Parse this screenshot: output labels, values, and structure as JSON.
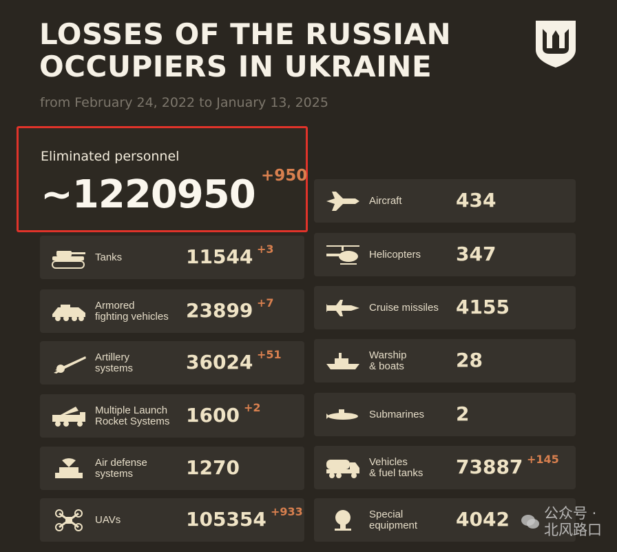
{
  "header": {
    "title_line1": "LOSSES OF THE RUSSIAN",
    "title_line2": "OCCUPIERS IN UKRAINE",
    "subtitle": "from February 24, 2022 to January 13, 2025",
    "emblem": "trident-shield-icon"
  },
  "personnel": {
    "label": "Eliminated personnel",
    "value": "~1220950",
    "increase": "+950"
  },
  "left": [
    {
      "icon": "tank-icon",
      "label": "Tanks",
      "value": "11544",
      "increase": "+3"
    },
    {
      "icon": "armored-vehicle-icon",
      "label": "Armored\nfighting vehicles",
      "value": "23899",
      "increase": "+7"
    },
    {
      "icon": "artillery-icon",
      "label": "Artillery\nsystems",
      "value": "36024",
      "increase": "+51"
    },
    {
      "icon": "rocket-launcher-icon",
      "label": "Multiple Launch\nRocket Systems",
      "value": "1600",
      "increase": "+2"
    },
    {
      "icon": "air-defense-icon",
      "label": "Air defense\nsystems",
      "value": "1270",
      "increase": ""
    },
    {
      "icon": "drone-icon",
      "label": "UAVs",
      "value": "105354",
      "increase": "+933"
    }
  ],
  "right": [
    {
      "icon": "aircraft-icon",
      "label": "Aircraft",
      "value": "434",
      "increase": ""
    },
    {
      "icon": "helicopter-icon",
      "label": "Helicopters",
      "value": "347",
      "increase": ""
    },
    {
      "icon": "cruise-missile-icon",
      "label": "Cruise missiles",
      "value": "4155",
      "increase": ""
    },
    {
      "icon": "warship-icon",
      "label": "Warship\n& boats",
      "value": "28",
      "increase": ""
    },
    {
      "icon": "submarine-icon",
      "label": "Submarines",
      "value": "2",
      "increase": ""
    },
    {
      "icon": "truck-icon",
      "label": "Vehicles\n& fuel tanks",
      "value": "73887",
      "increase": "+145"
    },
    {
      "icon": "special-equipment-icon",
      "label": "Special\nequipment",
      "value": "4042",
      "increase": ""
    }
  ],
  "watermark": {
    "icon": "wechat-icon",
    "text": "公众号 · 北风路口"
  },
  "colors": {
    "background": "#2a2620",
    "card": "#36322c",
    "highlight_border": "#e0332a",
    "increase": "#d9804f",
    "value": "#efe3c5"
  }
}
